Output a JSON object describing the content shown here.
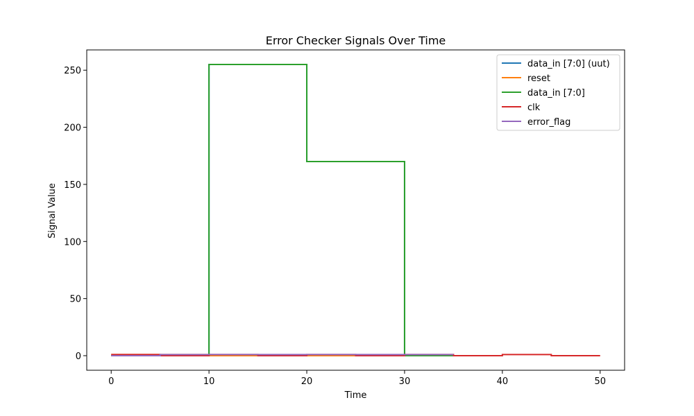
{
  "chart_data": {
    "type": "line",
    "step": true,
    "title": "Error Checker Signals Over Time",
    "xlabel": "Time",
    "ylabel": "Signal Value",
    "xlim": [
      -2.5,
      52.5
    ],
    "ylim": [
      -12.75,
      267.75
    ],
    "xticks": [
      0,
      10,
      20,
      30,
      40,
      50
    ],
    "yticks": [
      0,
      50,
      100,
      150,
      200,
      250
    ],
    "grid": false,
    "legend_position": "top-right",
    "series": [
      {
        "name": "data_in [7:0] (uut)",
        "color": "#1f77b4",
        "x": [
          0,
          10,
          20,
          30,
          35
        ],
        "y": [
          0,
          255,
          170,
          0,
          0
        ]
      },
      {
        "name": "reset",
        "color": "#ff7f0e",
        "x": [
          0,
          10,
          35
        ],
        "y": [
          1,
          0,
          0
        ]
      },
      {
        "name": "data_in [7:0]",
        "color": "#2ca02c",
        "x": [
          0,
          10,
          20,
          30,
          35
        ],
        "y": [
          0,
          255,
          170,
          0,
          0
        ]
      },
      {
        "name": "clk",
        "color": "#d62728",
        "x": [
          0,
          5,
          10,
          15,
          20,
          25,
          30,
          35,
          40,
          45,
          50
        ],
        "y": [
          1,
          0,
          1,
          0,
          1,
          0,
          1,
          0,
          1,
          0,
          0
        ]
      },
      {
        "name": "error_flag",
        "color": "#9467bd",
        "x": [
          0,
          5,
          10,
          35
        ],
        "y": [
          0,
          1,
          1,
          1
        ]
      }
    ]
  }
}
